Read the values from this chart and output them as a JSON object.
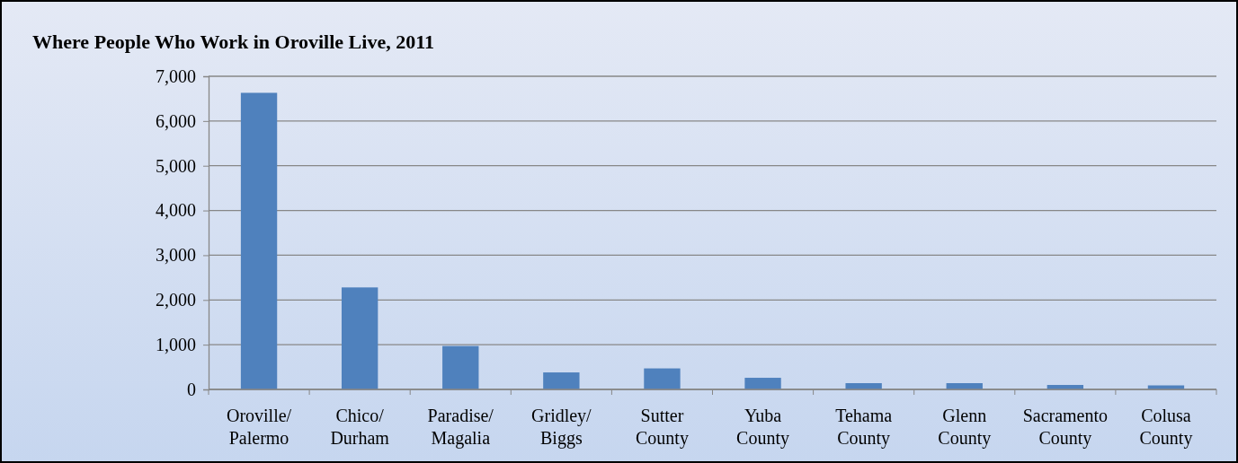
{
  "chart_data": {
    "type": "bar",
    "title": "Where People Who Work in Oroville Live, 2011",
    "categories": [
      "Oroville/ Palermo",
      "Chico/ Durham",
      "Paradise/ Magalia",
      "Gridley/ Biggs",
      "Sutter County",
      "Yuba County",
      "Tehama County",
      "Glenn County",
      "Sacramento County",
      "Colusa County"
    ],
    "values": [
      6630,
      2280,
      970,
      380,
      470,
      260,
      140,
      140,
      100,
      90
    ],
    "color": "#4f81bd",
    "ylim": [
      0,
      7000
    ],
    "yticks": [
      {
        "value": 0,
        "label": "0"
      },
      {
        "value": 1000,
        "label": "1,000"
      },
      {
        "value": 2000,
        "label": "2,000"
      },
      {
        "value": 3000,
        "label": "3,000"
      },
      {
        "value": 4000,
        "label": "4,000"
      },
      {
        "value": 5000,
        "label": "5,000"
      },
      {
        "value": 6000,
        "label": "6,000"
      },
      {
        "value": 7000,
        "label": "7,000"
      }
    ],
    "grid": "y"
  }
}
